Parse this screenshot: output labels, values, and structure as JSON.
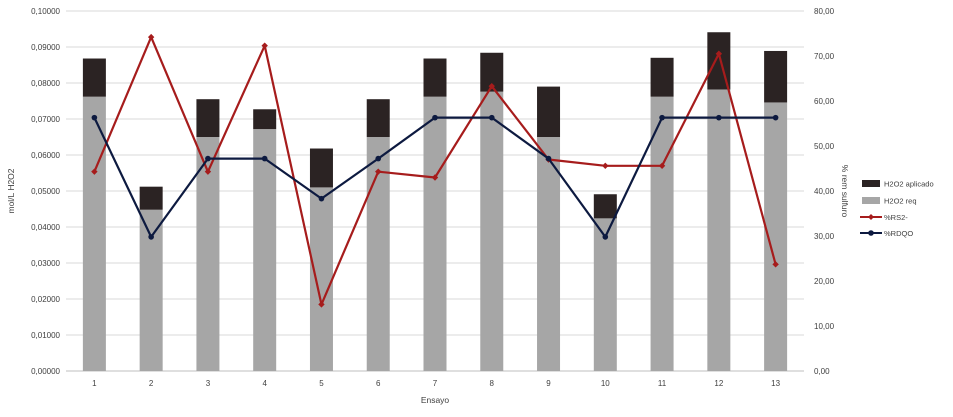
{
  "chart_data": {
    "type": "bar",
    "xlabel": "Ensayo",
    "ylabel_left": "mol/L H2O2",
    "ylabel_right": "% rem sulfuro",
    "categories": [
      "1",
      "2",
      "3",
      "4",
      "5",
      "6",
      "7",
      "8",
      "9",
      "10",
      "11",
      "12",
      "13"
    ],
    "left_axis": {
      "ylim": [
        0,
        0.1
      ],
      "ticks": [
        "0,00000",
        "0,01000",
        "0,02000",
        "0,03000",
        "0,04000",
        "0,05000",
        "0,06000",
        "0,07000",
        "0,08000",
        "0,09000",
        "0,10000"
      ]
    },
    "right_axis": {
      "ylim": [
        0,
        80
      ],
      "ticks": [
        "0,00",
        "10,00",
        "20,00",
        "30,00",
        "40,00",
        "50,00",
        "60,00",
        "70,00",
        "80,00"
      ]
    },
    "stacked_bars": [
      {
        "name": "H2O2 req",
        "color": "#a6a6a6",
        "values": [
          0.0762,
          0.0448,
          0.065,
          0.0672,
          0.051,
          0.065,
          0.0762,
          0.0776,
          0.065,
          0.0424,
          0.0762,
          0.0782,
          0.0746
        ]
      },
      {
        "name": "H2O2 aplicado",
        "color": "#2b2323",
        "values": [
          0.0106,
          0.0064,
          0.0105,
          0.0055,
          0.0108,
          0.0105,
          0.0106,
          0.0108,
          0.014,
          0.0067,
          0.0108,
          0.0159,
          0.0143
        ]
      }
    ],
    "lines": [
      {
        "name": "%RS2-",
        "color": "#a61c1c",
        "marker": "diamond",
        "values": [
          44.3,
          74.2,
          44.3,
          72.3,
          14.8,
          44.3,
          43.0,
          63.3,
          47.0,
          45.6,
          45.6,
          70.5,
          23.7
        ]
      },
      {
        "name": "%RDQO",
        "color": "#0d1a40",
        "marker": "circle",
        "values": [
          56.3,
          29.8,
          47.2,
          47.2,
          38.3,
          47.2,
          56.3,
          56.3,
          47.2,
          29.8,
          56.3,
          56.3,
          56.3
        ]
      }
    ],
    "legend": {
      "position": "right",
      "entries": [
        "H2O2 aplicado",
        "H2O2 req",
        "%RS2-",
        "%RDQO"
      ]
    },
    "grid": true
  }
}
